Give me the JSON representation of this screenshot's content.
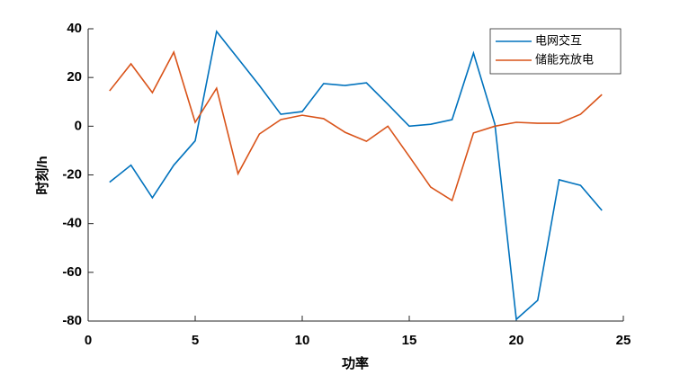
{
  "chart_data": {
    "type": "line",
    "x_label": "功率",
    "y_label": "时刻/h",
    "x": [
      1,
      2,
      3,
      4,
      5,
      6,
      7,
      8,
      9,
      10,
      11,
      12,
      13,
      14,
      15,
      16,
      17,
      18,
      19,
      20,
      21,
      22,
      23,
      24
    ],
    "series": [
      {
        "name": "电网交互",
        "color": "#0072BD",
        "values": [
          -23,
          -16,
          -29.4,
          -16,
          -6,
          38.9,
          27.8,
          16.7,
          4.9,
          6,
          17.5,
          16.7,
          17.8,
          9,
          0,
          0.8,
          2.7,
          30,
          0.8,
          -79.3,
          -71.5,
          -22,
          -24.3,
          -34.6
        ]
      },
      {
        "name": "储能充放电",
        "color": "#D95319",
        "values": [
          14.5,
          25.6,
          13.8,
          30.4,
          1.6,
          15.6,
          -19.5,
          -3.2,
          2.7,
          4.5,
          3.1,
          -2.5,
          -6.2,
          0,
          -12.4,
          -25,
          -30.5,
          -2.8,
          0,
          1.6,
          1.2,
          1.2,
          4.9,
          13
        ]
      }
    ],
    "xlim": [
      0,
      25
    ],
    "xticks": [
      0,
      5,
      10,
      15,
      20,
      25
    ],
    "ylim": [
      -80,
      40
    ],
    "yticks": [
      -80,
      -60,
      -40,
      -20,
      0,
      20,
      40
    ],
    "legend": "northeast",
    "grid": false
  }
}
